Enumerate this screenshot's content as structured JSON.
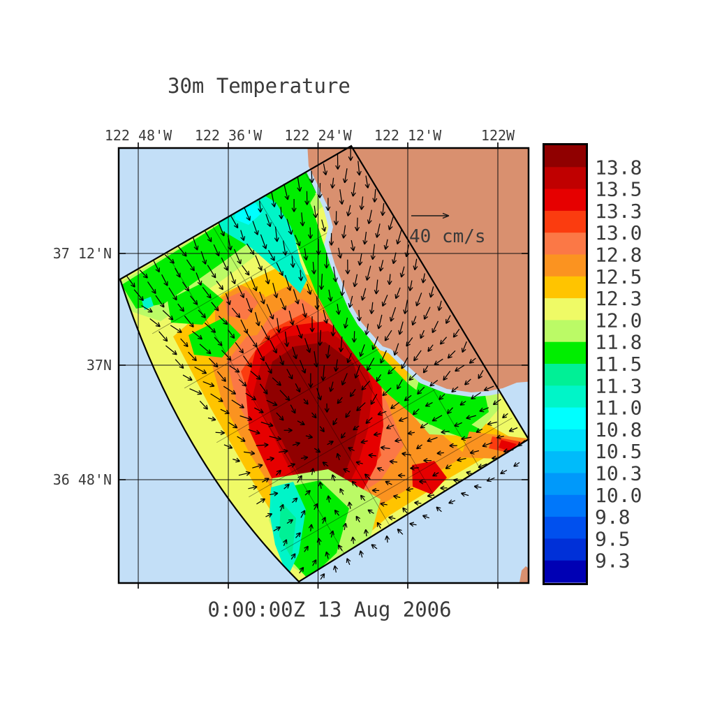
{
  "title": "30m Temperature",
  "timestamp": "0:00:00Z  13 Aug 2006",
  "axes": {
    "top_labels": [
      "122 48'W",
      "122 36'W",
      "122 24'W",
      "122 12'W",
      "122W"
    ],
    "left_labels": [
      "37 12'N",
      "37N",
      "36 48'N"
    ]
  },
  "vector_key": {
    "label": "40 cm/s"
  },
  "colorbar": {
    "tick_labels": [
      "13.8",
      "13.5",
      "13.3",
      "13.0",
      "12.8",
      "12.5",
      "12.3",
      "12.0",
      "11.8",
      "11.5",
      "11.3",
      "11.0",
      "10.8",
      "10.5",
      "10.3",
      "10.0",
      "9.8",
      "9.5",
      "9.3"
    ],
    "band_colors": [
      "#900000",
      "#C00000",
      "#E60000",
      "#FB3C0F",
      "#FB7846",
      "#FB9320",
      "#FFC400",
      "#EFFA66",
      "#BBFA66",
      "#00EE00",
      "#00F096",
      "#00F5C8",
      "#00FFFF",
      "#00DDFA",
      "#00BBFA",
      "#0099FA",
      "#0077FA",
      "#0050EE",
      "#0030D8",
      "#0000B4"
    ]
  },
  "colors": {
    "ocean": "#C3DFF7",
    "land": "#D9906F",
    "background": "#FFFFFF",
    "text": "#3A3A3A",
    "grid": "#000000"
  },
  "chart_data": {
    "type": "heatmap",
    "title": "30m Temperature",
    "timestamp": "0:00:00Z  13 Aug 2006",
    "x_tick_labels": [
      "122 48'W",
      "122 36'W",
      "122 24'W",
      "122 12'W",
      "122W"
    ],
    "y_tick_labels": [
      "37 12'N",
      "37N",
      "36 48'N"
    ],
    "colorbar_levels_degC": [
      13.8,
      13.5,
      13.3,
      13.0,
      12.8,
      12.5,
      12.3,
      12.0,
      11.8,
      11.5,
      11.3,
      11.0,
      10.8,
      10.5,
      10.3,
      10.0,
      9.8,
      9.5,
      9.3
    ],
    "colorbar_band_colors": [
      "#900000",
      "#C00000",
      "#E60000",
      "#FB3C0F",
      "#FB7846",
      "#FB9320",
      "#FFC400",
      "#EFFA66",
      "#BBFA66",
      "#00EE00",
      "#00F096",
      "#00F5C8",
      "#00FFFF",
      "#00DDFA",
      "#00BBFA",
      "#0099FA",
      "#0077FA",
      "#0050EE",
      "#0030D8",
      "#0000B4"
    ],
    "vector_scale_cm_per_s": 40,
    "field_summary": {
      "description": "Rotated curvilinear model swath of 30 m ocean temperature with current vector arrows, off the central California coast near Monterey Bay",
      "warm_core_degC": [
        13.5,
        13.8
      ],
      "warm_core_location": "center of swath near 122 24'W, 36 54'N",
      "swath_edge_degC": [
        11.0,
        12.0
      ],
      "coolest_bands_degC": [
        10.8,
        11.3
      ],
      "flow_pattern": "vectors converge toward the warm core with southward alongshore drift"
    }
  }
}
